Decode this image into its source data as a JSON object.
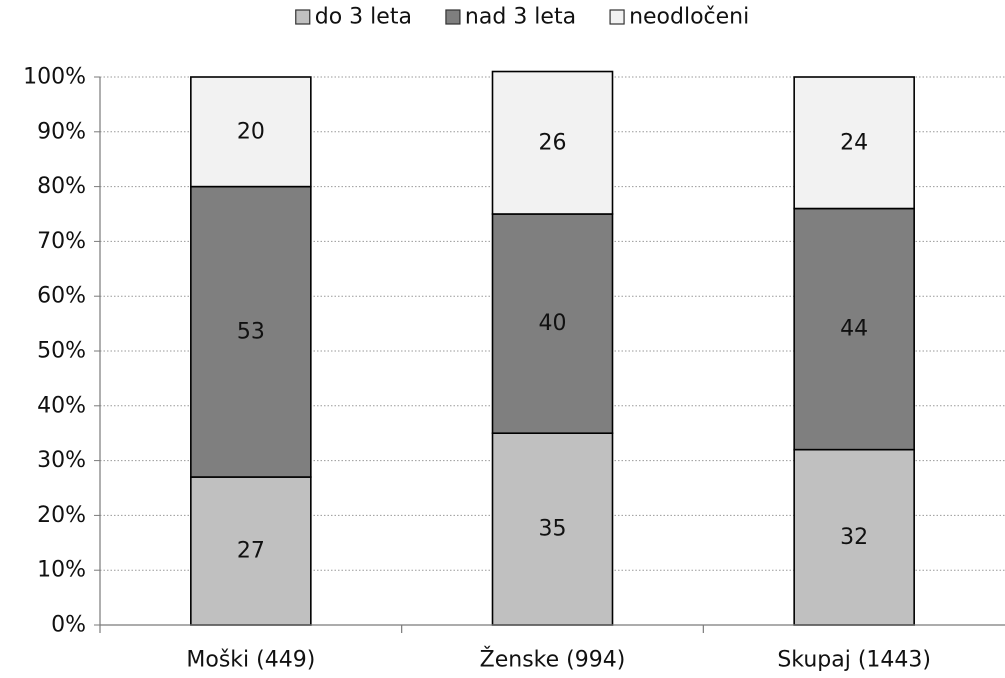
{
  "chart_data": {
    "type": "bar",
    "stacked": true,
    "percent_stacked": true,
    "categories": [
      "Moški (449)",
      "Ženske (994)",
      "Skupaj (1443)"
    ],
    "series": [
      {
        "name": "do 3 leta",
        "values": [
          27,
          35,
          32
        ],
        "color": "#c0c0c0"
      },
      {
        "name": "nad 3 leta",
        "values": [
          53,
          40,
          44
        ],
        "color": "#7f7f7f"
      },
      {
        "name": "neodločeni",
        "values": [
          20,
          26,
          24
        ],
        "color": "#f2f2f2"
      }
    ],
    "data_labels": true,
    "ylim": [
      0,
      100
    ],
    "yticks": [
      "0%",
      "10%",
      "20%",
      "30%",
      "40%",
      "50%",
      "60%",
      "70%",
      "80%",
      "90%",
      "100%"
    ],
    "grid": "horizontal dotted",
    "legend": "top-center",
    "title": "",
    "xlabel": "",
    "ylabel": ""
  }
}
